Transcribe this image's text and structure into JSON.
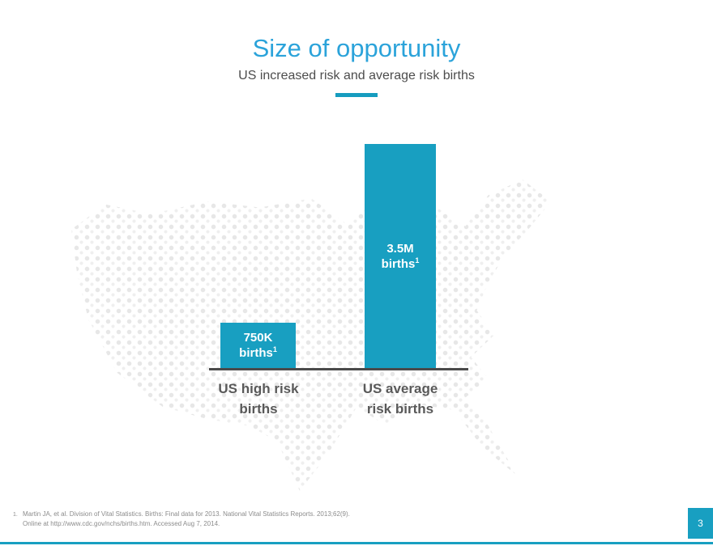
{
  "header": {
    "title": "Size of opportunity",
    "subtitle": "US increased risk and average risk births"
  },
  "colors": {
    "accent_teal": "#189FC1",
    "title_blue": "#2BA3DA",
    "text_dark": "#4D4D4D",
    "category_label": "#595959",
    "footnote_gray": "#8C8C8C",
    "map_dots": "#E7E7E7"
  },
  "chart_data": {
    "type": "bar",
    "title": "Size of opportunity",
    "subtitle": "US increased risk and average risk births",
    "categories": [
      "US high risk births",
      "US average risk births"
    ],
    "values": [
      750000,
      3500000
    ],
    "value_labels": [
      "750K births¹",
      "3.5M births¹"
    ],
    "xlabel": "",
    "ylabel": "",
    "ylim": [
      0,
      3700000
    ],
    "grid": false,
    "legend": false,
    "bar_color": "#189FC1",
    "background": "dotted US map silhouette"
  },
  "bars": [
    {
      "value_line1": "750K",
      "value_line2": "births",
      "footnote_ref": "1",
      "category": "US high risk\nbirths"
    },
    {
      "value_line1": "3.5M",
      "value_line2": "births",
      "footnote_ref": "1",
      "category": "US average\nrisk births"
    }
  ],
  "footnote": {
    "marker": "1.",
    "line1": "Martin JA, et al. Division of Vital Statistics. Births: Final data for 2013. National Vital Statistics Reports. 2013;62(9).",
    "line2": "Online at http://www.cdc.gov/nchs/births.htm. Accessed Aug 7, 2014."
  },
  "footer": {
    "page_number": "3"
  }
}
